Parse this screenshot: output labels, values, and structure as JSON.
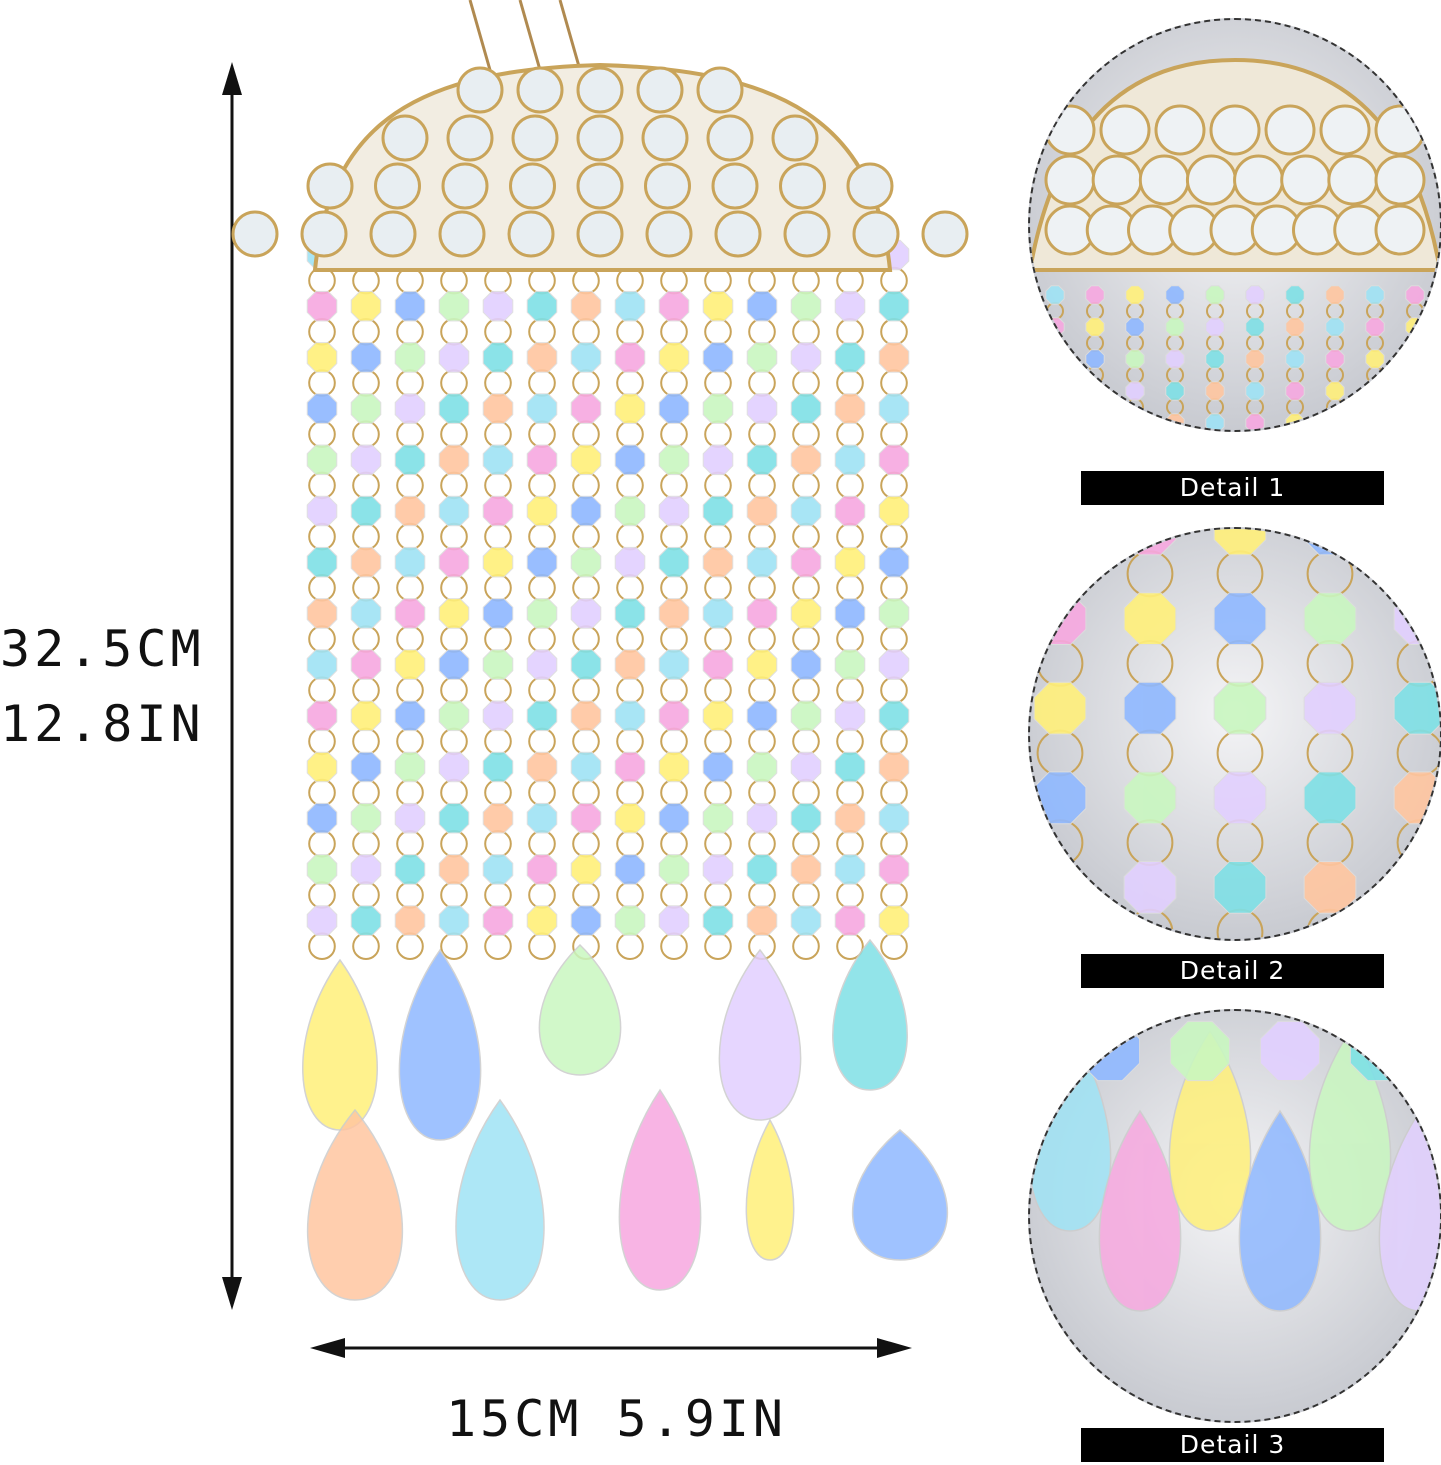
{
  "dimensions": {
    "height_cm": "32.5CM",
    "height_in": "12.8IN",
    "width": "15CM 5.9IN"
  },
  "details": [
    {
      "label": "Detail 1"
    },
    {
      "label": "Detail 2"
    },
    {
      "label": "Detail 3"
    }
  ],
  "colors": {
    "frame": "#c9a45a",
    "label_bg": "#000000",
    "label_text": "#ffffff"
  }
}
